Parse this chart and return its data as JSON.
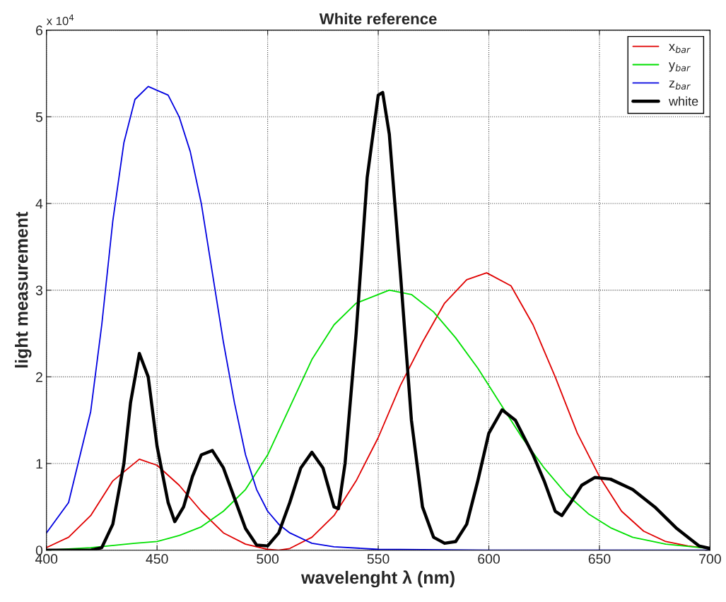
{
  "chart_data": {
    "type": "line",
    "title": "White reference",
    "xlabel": "wavelenght λ (nm)",
    "ylabel": "light measurement",
    "annotations": [
      "x 10$^{4}$"
    ],
    "xlim": [
      400,
      700
    ],
    "xticks": [
      400,
      450,
      500,
      550,
      600,
      650,
      700
    ],
    "ylim": [
      0,
      6
    ],
    "yticks": [
      0,
      1,
      2,
      3,
      4,
      5,
      6
    ],
    "grid": true,
    "legend": "top right",
    "line_style": "solid",
    "marker": "none",
    "series": [
      {
        "name": "x$_{bar}$",
        "color": "#e00000",
        "x": [
          400,
          410,
          420,
          430,
          442,
          450,
          460,
          470,
          480,
          490,
          500,
          505,
          510,
          520,
          530,
          540,
          550,
          560,
          570,
          580,
          590,
          599,
          610,
          620,
          630,
          640,
          650,
          660,
          670,
          680,
          690,
          700
        ],
        "values": [
          0.03,
          0.15,
          0.4,
          0.8,
          1.05,
          0.98,
          0.75,
          0.45,
          0.2,
          0.07,
          0.01,
          0,
          0.02,
          0.15,
          0.4,
          0.8,
          1.3,
          1.9,
          2.4,
          2.85,
          3.12,
          3.2,
          3.05,
          2.6,
          2.0,
          1.35,
          0.85,
          0.45,
          0.22,
          0.1,
          0.05,
          0.02
        ]
      },
      {
        "name": "y$_{bar}$",
        "color": "#00e000",
        "x": [
          400,
          420,
          440,
          450,
          460,
          470,
          480,
          490,
          500,
          510,
          520,
          530,
          540,
          555,
          565,
          575,
          585,
          595,
          605,
          615,
          625,
          635,
          645,
          655,
          665,
          680,
          700
        ],
        "values": [
          0,
          0.03,
          0.08,
          0.1,
          0.17,
          0.27,
          0.45,
          0.7,
          1.1,
          1.65,
          2.2,
          2.6,
          2.85,
          3.0,
          2.95,
          2.75,
          2.45,
          2.1,
          1.7,
          1.3,
          0.95,
          0.65,
          0.42,
          0.26,
          0.15,
          0.07,
          0.02
        ]
      },
      {
        "name": "z$_{bar}$",
        "color": "#0000e0",
        "x": [
          400,
          410,
          420,
          425,
          430,
          435,
          440,
          446,
          455,
          460,
          465,
          470,
          475,
          480,
          485,
          490,
          495,
          500,
          505,
          510,
          520,
          530,
          550,
          600,
          700
        ],
        "values": [
          0.2,
          0.55,
          1.6,
          2.6,
          3.8,
          4.7,
          5.2,
          5.35,
          5.25,
          5.0,
          4.6,
          4.0,
          3.2,
          2.4,
          1.7,
          1.1,
          0.7,
          0.45,
          0.3,
          0.2,
          0.08,
          0.04,
          0.01,
          0,
          0
        ]
      },
      {
        "name": "white",
        "color": "#000000",
        "x": [
          400,
          420,
          425,
          430,
          435,
          438,
          442,
          446,
          450,
          455,
          458,
          462,
          466,
          470,
          475,
          480,
          485,
          490,
          495,
          500,
          505,
          510,
          515,
          520,
          525,
          530,
          532,
          535,
          540,
          545,
          550,
          552,
          555,
          560,
          565,
          570,
          575,
          580,
          585,
          590,
          595,
          600,
          606,
          612,
          620,
          625,
          630,
          633,
          637,
          642,
          648,
          655,
          665,
          675,
          685,
          695,
          700
        ],
        "values": [
          0,
          0,
          0.03,
          0.3,
          1.0,
          1.7,
          2.27,
          2.0,
          1.2,
          0.55,
          0.33,
          0.5,
          0.85,
          1.1,
          1.15,
          0.95,
          0.6,
          0.25,
          0.06,
          0.05,
          0.2,
          0.55,
          0.95,
          1.13,
          0.95,
          0.5,
          0.48,
          1.0,
          2.5,
          4.3,
          5.25,
          5.28,
          4.8,
          3.2,
          1.5,
          0.5,
          0.15,
          0.08,
          0.1,
          0.3,
          0.8,
          1.35,
          1.62,
          1.5,
          1.1,
          0.8,
          0.45,
          0.4,
          0.55,
          0.75,
          0.84,
          0.82,
          0.7,
          0.5,
          0.25,
          0.05,
          0.02
        ]
      }
    ]
  }
}
